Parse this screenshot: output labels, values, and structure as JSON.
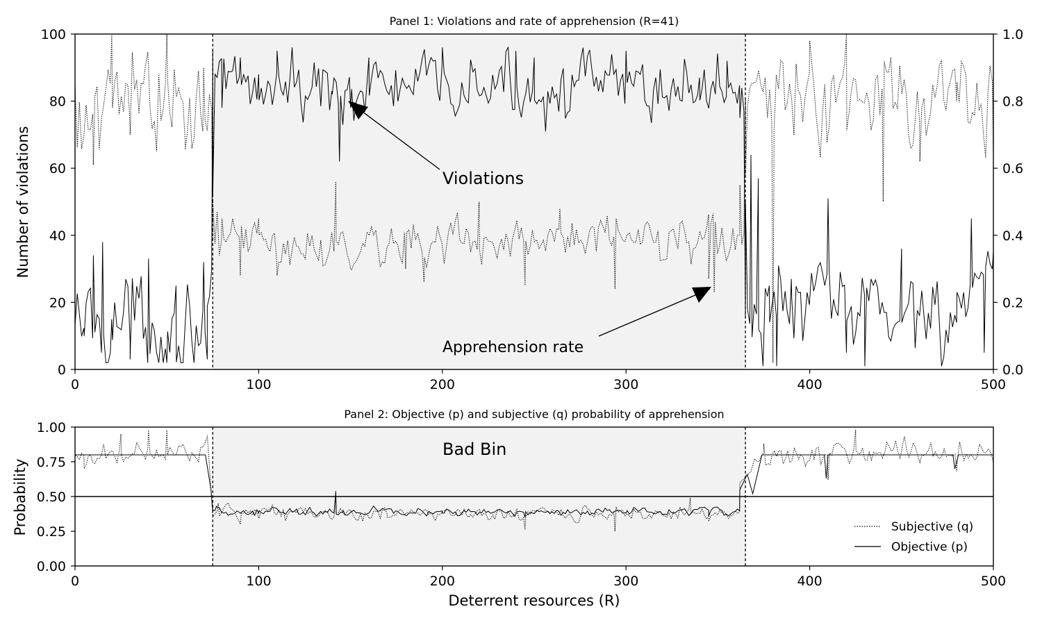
{
  "chart_data": [
    {
      "type": "line",
      "title": "Panel 1: Violations and rate of apprehension (R=41)",
      "xlabel": "",
      "ylabel": "Number of violations",
      "xlim": [
        0,
        500
      ],
      "ylim": [
        0,
        100
      ],
      "y2lim": [
        0.0,
        1.0
      ],
      "xticks": [
        "0",
        "100",
        "200",
        "300",
        "400",
        "500"
      ],
      "yticks": [
        "0",
        "20",
        "40",
        "60",
        "80",
        "100"
      ],
      "y2ticks": [
        "0.0",
        "0.2",
        "0.4",
        "0.6",
        "0.8",
        "1.0"
      ],
      "shaded_region": [
        75,
        365
      ],
      "vlines": [
        75,
        365
      ],
      "grid": false,
      "annotations": [
        {
          "text": "Violations",
          "at": [
            200,
            56
          ],
          "points_to": [
            150,
            80
          ]
        },
        {
          "text": "Apprehension rate",
          "at": [
            200,
            5
          ],
          "points_to": [
            347,
            24
          ]
        }
      ],
      "series": [
        {
          "style": "solid",
          "axis": "left",
          "segments": [
            {
              "x": [
                0,
                75
              ],
              "mean": 14,
              "spread": 12,
              "min": 2,
              "max": 38
            },
            {
              "x": [
                75,
                365
              ],
              "mean": 84,
              "spread": 8,
              "min": 62,
              "max": 96
            },
            {
              "x": [
                365,
                500
              ],
              "mean": 18,
              "spread": 12,
              "min": 1,
              "max": 51
            }
          ],
          "points": [
            [
              0,
              13
            ],
            [
              5,
              10
            ],
            [
              10,
              34
            ],
            [
              15,
              38
            ],
            [
              20,
              15
            ],
            [
              30,
              3
            ],
            [
              40,
              33
            ],
            [
              50,
              2
            ],
            [
              55,
              25
            ],
            [
              70,
              32
            ],
            [
              72,
              3
            ],
            [
              75,
              52
            ],
            [
              80,
              78
            ],
            [
              90,
              93
            ],
            [
              100,
              88
            ],
            [
              110,
              95
            ],
            [
              130,
              90
            ],
            [
              140,
              82
            ],
            [
              144,
              62
            ],
            [
              150,
              78
            ],
            [
              160,
              93
            ],
            [
              200,
              96
            ],
            [
              240,
              95
            ],
            [
              250,
              93
            ],
            [
              300,
              95
            ],
            [
              340,
              87
            ],
            [
              355,
              92
            ],
            [
              362,
              75
            ],
            [
              365,
              50
            ],
            [
              368,
              64
            ],
            [
              372,
              57
            ],
            [
              378,
              25
            ],
            [
              382,
              1
            ],
            [
              390,
              27
            ],
            [
              410,
              51
            ],
            [
              420,
              5
            ],
            [
              430,
              1
            ],
            [
              450,
              36
            ],
            [
              480,
              14
            ],
            [
              488,
              45
            ],
            [
              495,
              5
            ],
            [
              500,
              35
            ]
          ]
        },
        {
          "style": "dotted",
          "axis": "right",
          "segments": [
            {
              "x": [
                0,
                75
              ],
              "mean": 0.8,
              "spread": 0.12,
              "min": 0.6,
              "max": 1.0
            },
            {
              "x": [
                75,
                365
              ],
              "mean": 0.38,
              "spread": 0.06,
              "min": 0.24,
              "max": 0.56
            },
            {
              "x": [
                365,
                500
              ],
              "mean": 0.8,
              "spread": 0.12,
              "min": 0.5,
              "max": 1.0
            }
          ],
          "points": [
            [
              0,
              0.85
            ],
            [
              10,
              0.61
            ],
            [
              20,
              1.0
            ],
            [
              30,
              0.7
            ],
            [
              40,
              0.9
            ],
            [
              50,
              1.0
            ],
            [
              60,
              0.68
            ],
            [
              70,
              0.9
            ],
            [
              75,
              0.5
            ],
            [
              80,
              0.45
            ],
            [
              90,
              0.28
            ],
            [
              100,
              0.45
            ],
            [
              110,
              0.28
            ],
            [
              142,
              0.56
            ],
            [
              150,
              0.3
            ],
            [
              180,
              0.3
            ],
            [
              190,
              0.26
            ],
            [
              220,
              0.5
            ],
            [
              245,
              0.25
            ],
            [
              264,
              0.48
            ],
            [
              294,
              0.24
            ],
            [
              345,
              0.27
            ],
            [
              348,
              0.23
            ],
            [
              362,
              0.55
            ],
            [
              365,
              0.58
            ],
            [
              380,
              0.02
            ],
            [
              400,
              0.98
            ],
            [
              420,
              1.0
            ],
            [
              440,
              0.5
            ],
            [
              460,
              0.62
            ],
            [
              480,
              0.8
            ],
            [
              500,
              0.64
            ]
          ]
        }
      ]
    },
    {
      "type": "line",
      "title": "Panel 2: Objective (p) and subjective (q) probability of apprehension",
      "xlabel": "Deterrent resources (R)",
      "ylabel": "Probability",
      "xlim": [
        0,
        500
      ],
      "ylim": [
        0.0,
        1.0
      ],
      "xticks": [
        "0",
        "100",
        "200",
        "300",
        "400",
        "500"
      ],
      "yticks": [
        "0.00",
        "0.25",
        "0.50",
        "0.75",
        "1.00"
      ],
      "shaded_region": [
        75,
        365
      ],
      "vlines": [
        75,
        365
      ],
      "hline": 0.5,
      "grid": false,
      "annotations": [
        {
          "text": "Bad Bin",
          "at": [
            200,
            0.8
          ]
        }
      ],
      "legend": {
        "position": "lower-right",
        "entries": [
          "Subjective (q)",
          "Objective (p)"
        ]
      },
      "series": [
        {
          "name": "Subjective (q)",
          "style": "dotted",
          "segments": [
            {
              "x": [
                0,
                73
              ],
              "mean": 0.82,
              "spread": 0.07,
              "min": 0.68,
              "max": 0.98
            },
            {
              "x": [
                75,
                362
              ],
              "mean": 0.38,
              "spread": 0.04,
              "min": 0.25,
              "max": 0.53
            },
            {
              "x": [
                370,
                500
              ],
              "mean": 0.82,
              "spread": 0.07,
              "min": 0.62,
              "max": 0.98
            }
          ],
          "points": [
            [
              0,
              0.8
            ],
            [
              5,
              0.7
            ],
            [
              25,
              0.95
            ],
            [
              40,
              0.98
            ],
            [
              50,
              0.98
            ],
            [
              72,
              0.93
            ],
            [
              78,
              0.45
            ],
            [
              90,
              0.3
            ],
            [
              142,
              0.54
            ],
            [
              170,
              0.35
            ],
            [
              245,
              0.26
            ],
            [
              294,
              0.25
            ],
            [
              335,
              0.49
            ],
            [
              345,
              0.32
            ],
            [
              362,
              0.6
            ],
            [
              368,
              0.68
            ],
            [
              375,
              0.88
            ],
            [
              410,
              0.62
            ],
            [
              425,
              0.98
            ],
            [
              480,
              0.68
            ],
            [
              500,
              0.74
            ]
          ]
        },
        {
          "name": "Objective (p)",
          "style": "solid",
          "segments": [
            {
              "x": [
                75,
                362
              ],
              "mean": 0.39,
              "spread": 0.025,
              "min": 0.33,
              "max": 0.53
            }
          ],
          "points": [
            [
              0,
              0.8
            ],
            [
              71,
              0.8
            ],
            [
              74,
              0.55
            ],
            [
              77,
              0.43
            ],
            [
              90,
              0.38
            ],
            [
              100,
              0.38
            ],
            [
              142,
              0.53
            ],
            [
              146,
              0.4
            ],
            [
              200,
              0.38
            ],
            [
              245,
              0.35
            ],
            [
              300,
              0.38
            ],
            [
              345,
              0.36
            ],
            [
              362,
              0.55
            ],
            [
              366,
              0.66
            ],
            [
              369,
              0.52
            ],
            [
              374,
              0.8
            ],
            [
              408,
              0.8
            ],
            [
              409,
              0.63
            ],
            [
              410,
              0.8
            ],
            [
              478,
              0.8
            ],
            [
              479,
              0.7
            ],
            [
              481,
              0.8
            ],
            [
              500,
              0.8
            ]
          ]
        }
      ]
    }
  ]
}
